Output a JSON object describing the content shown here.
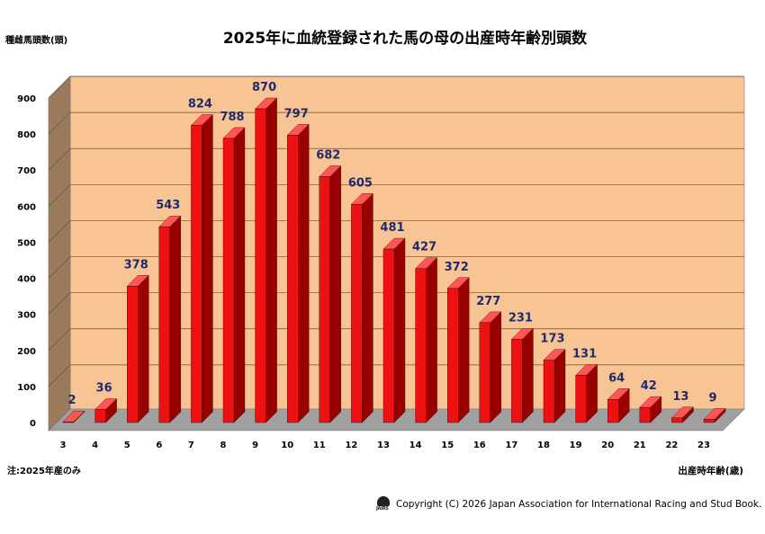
{
  "chart_data": {
    "type": "bar",
    "title": "2025年に血統登録された馬の母の出産時年齢別頭数",
    "ylabel": "種雌馬頭数(頭)",
    "xlabel": "出産時年齢(歳)",
    "ylim": [
      0,
      900
    ],
    "yticks": [
      0,
      100,
      200,
      300,
      400,
      500,
      600,
      700,
      800,
      900
    ],
    "categories": [
      "3",
      "4",
      "5",
      "6",
      "7",
      "8",
      "9",
      "10",
      "11",
      "12",
      "13",
      "14",
      "15",
      "16",
      "17",
      "18",
      "19",
      "20",
      "21",
      "22",
      "23"
    ],
    "values": [
      2,
      36,
      378,
      543,
      824,
      788,
      870,
      797,
      682,
      605,
      481,
      427,
      372,
      277,
      231,
      173,
      131,
      64,
      42,
      13,
      9
    ],
    "grid": true,
    "legend": "none",
    "colors": {
      "bar_front": "#ee1111",
      "bar_side": "#990000",
      "bar_top": "#ff5555",
      "back_wall": "#f8c493",
      "side_wall": "#9a7a5a",
      "floor": "#a0a0a0",
      "label_text": "#1f2a6e"
    }
  },
  "note": "注:2025年産のみ",
  "copyright": "Copyright (C) 2026  Japan Association for International Racing and Stud Book.",
  "logo_text": "JAIRS"
}
